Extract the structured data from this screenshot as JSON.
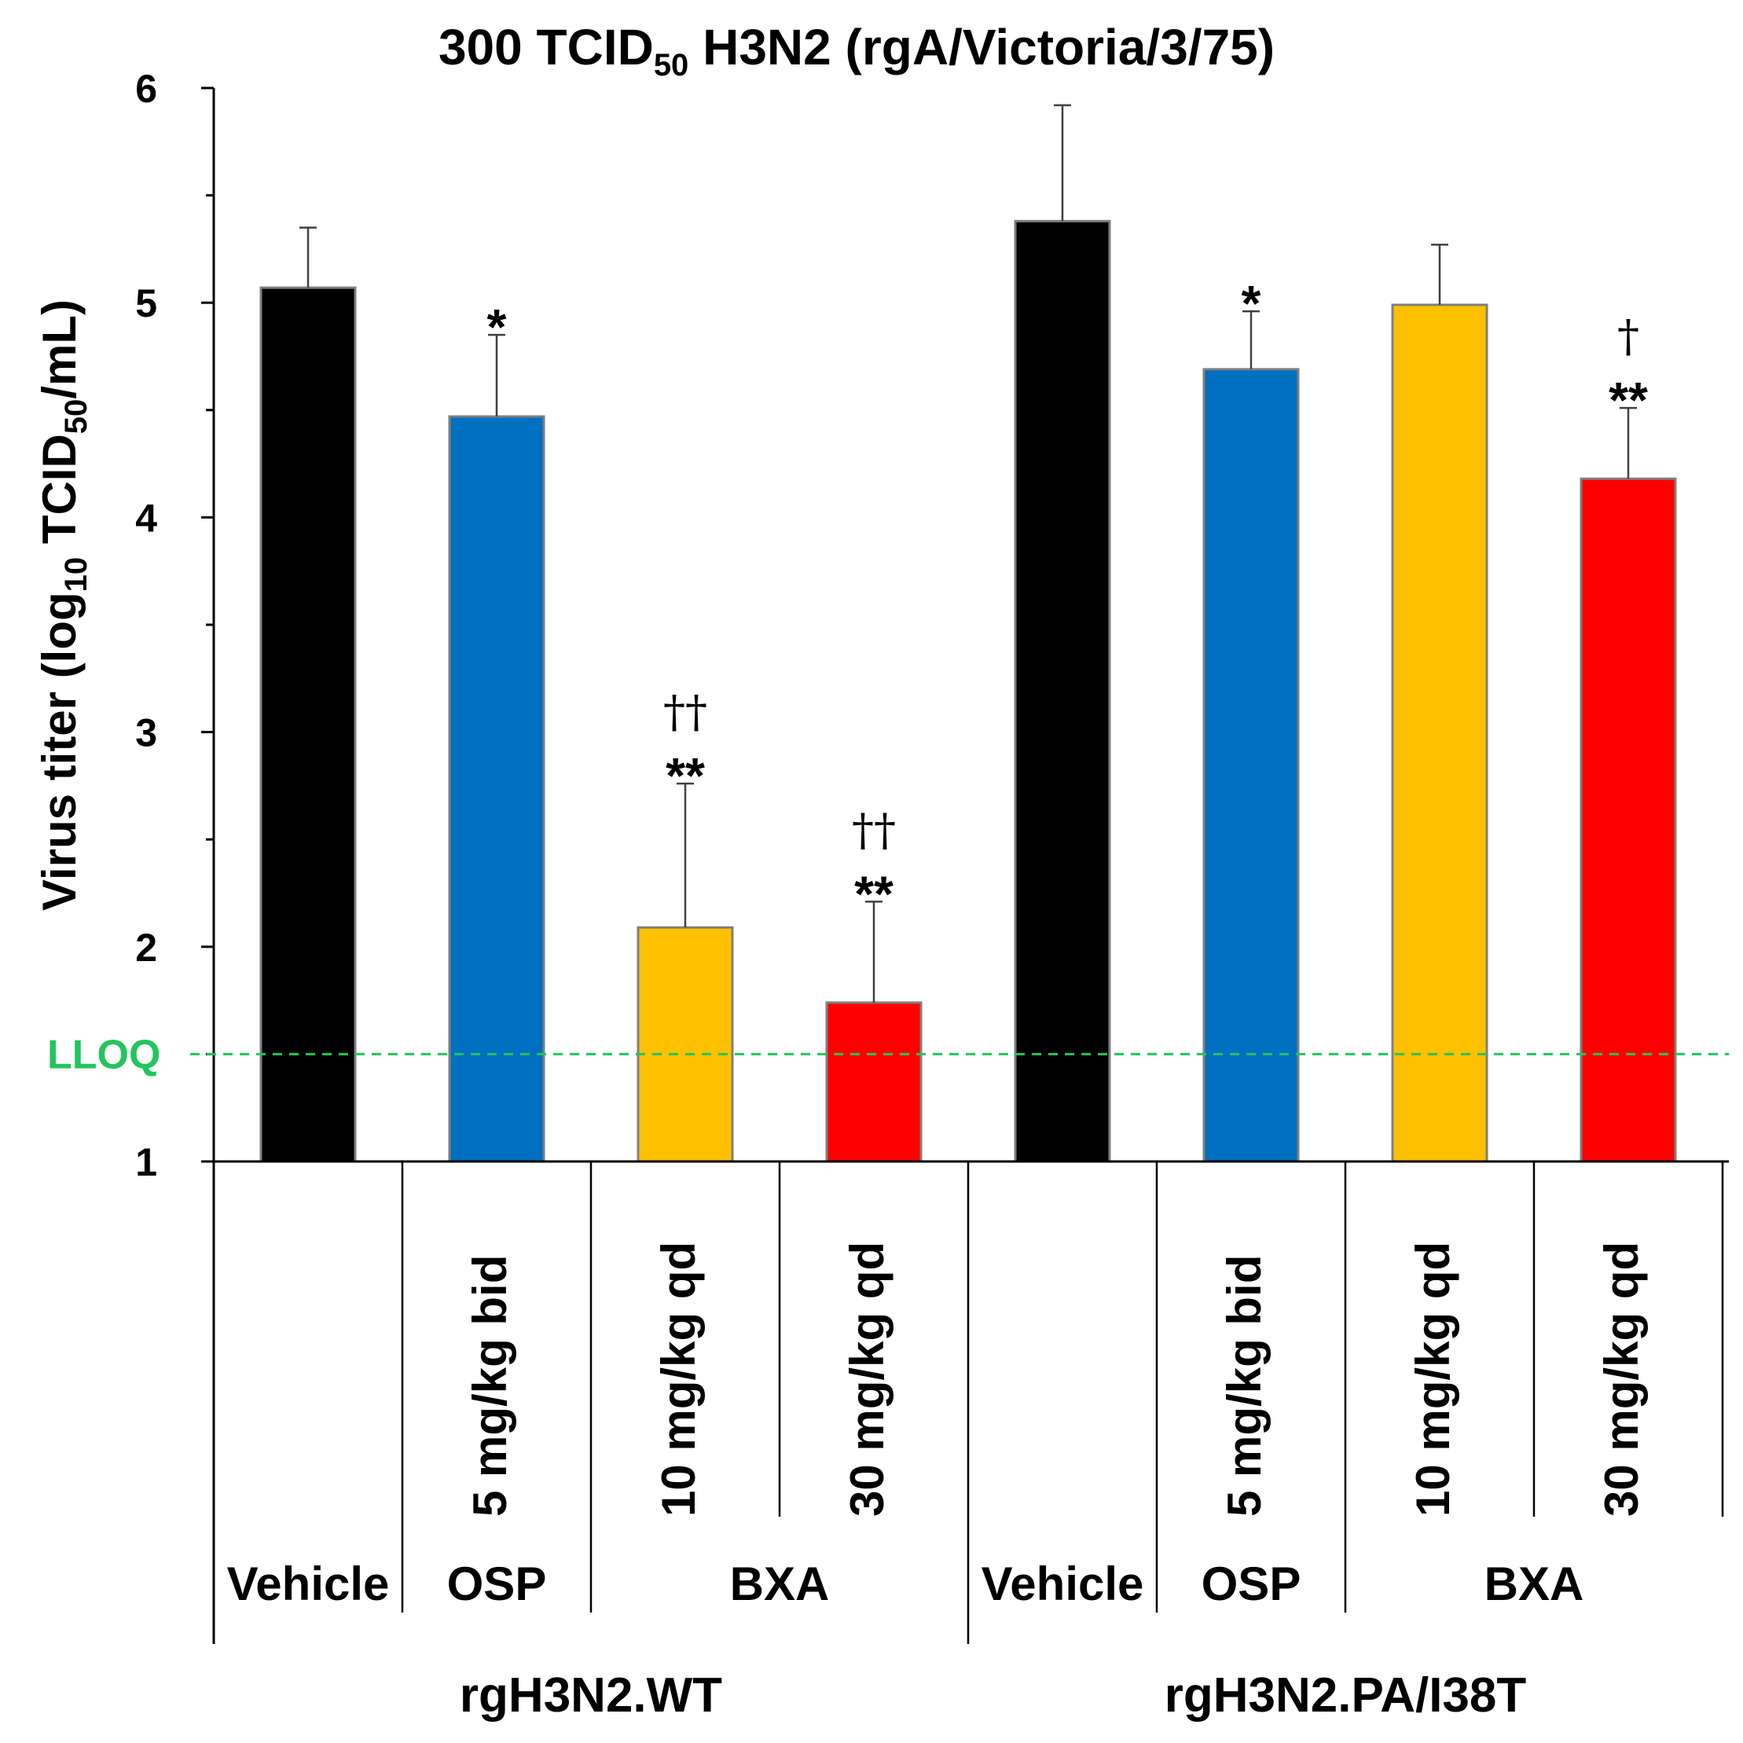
{
  "chart_data": {
    "type": "bar",
    "title": "300 TCID",
    "title_sub": "50",
    "title_rest": " H3N2  (rgA/Victoria/3/75)",
    "ylabel": "Virus titer (log",
    "ylabel_sub1": "10",
    "ylabel_mid": " TCID",
    "ylabel_sub2": "50",
    "ylabel_end": "/mL)",
    "ylim": [
      1,
      6
    ],
    "yticks": [
      "1",
      "2",
      "3",
      "4",
      "5",
      "6"
    ],
    "lloq": {
      "value": 1.5,
      "label": "LLOQ",
      "color": "#22c55e"
    },
    "bars": [
      {
        "strain": "rgH3N2.WT",
        "group": "Vehicle",
        "dose": "",
        "value": 5.07,
        "error": 0.28,
        "color": "#000000",
        "stars": "",
        "daggers": ""
      },
      {
        "strain": "rgH3N2.WT",
        "group": "OSP",
        "dose": "5 mg/kg bid",
        "value": 4.47,
        "error": 0.38,
        "color": "#0070c0",
        "stars": "*",
        "daggers": ""
      },
      {
        "strain": "rgH3N2.WT",
        "group": "BXA",
        "dose": "10 mg/kg qd",
        "value": 2.09,
        "error": 0.67,
        "color": "#ffc000",
        "stars": "**",
        "daggers": "††"
      },
      {
        "strain": "rgH3N2.WT",
        "group": "BXA",
        "dose": "30 mg/kg qd",
        "value": 1.74,
        "error": 0.47,
        "color": "#ff0000",
        "stars": "**",
        "daggers": "††"
      },
      {
        "strain": "rgH3N2.PA/I38T",
        "group": "Vehicle",
        "dose": "",
        "value": 5.38,
        "error": 0.54,
        "color": "#000000",
        "stars": "",
        "daggers": ""
      },
      {
        "strain": "rgH3N2.PA/I38T",
        "group": "OSP",
        "dose": "5 mg/kg bid",
        "value": 4.69,
        "error": 0.27,
        "color": "#0070c0",
        "stars": "*",
        "daggers": ""
      },
      {
        "strain": "rgH3N2.PA/I38T",
        "group": "BXA",
        "dose": "10 mg/kg qd",
        "value": 4.99,
        "error": 0.28,
        "color": "#ffc000",
        "stars": "",
        "daggers": ""
      },
      {
        "strain": "rgH3N2.PA/I38T",
        "group": "BXA",
        "dose": "30 mg/kg qd",
        "value": 4.18,
        "error": 0.33,
        "color": "#ff0000",
        "stars": "**",
        "daggers": "†"
      }
    ],
    "groups": [
      {
        "label": "Vehicle",
        "span": [
          0,
          0
        ]
      },
      {
        "label": "OSP",
        "span": [
          1,
          1
        ]
      },
      {
        "label": "BXA",
        "span": [
          2,
          3
        ]
      },
      {
        "label": "Vehicle",
        "span": [
          4,
          4
        ]
      },
      {
        "label": "OSP",
        "span": [
          5,
          5
        ]
      },
      {
        "label": "BXA",
        "span": [
          6,
          7
        ]
      }
    ],
    "strains": [
      {
        "label": "rgH3N2.WT",
        "span": [
          0,
          3
        ]
      },
      {
        "label": "rgH3N2.PA/I38T",
        "span": [
          4,
          7
        ]
      }
    ]
  }
}
